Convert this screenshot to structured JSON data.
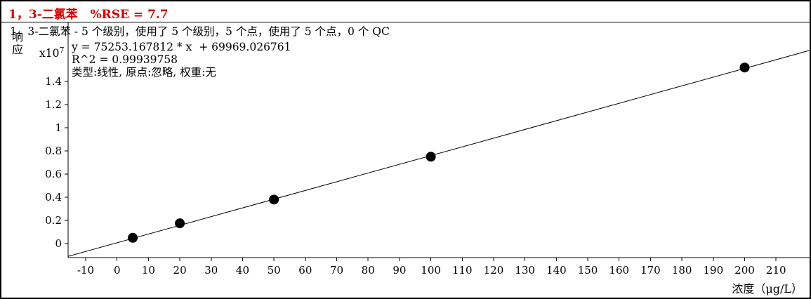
{
  "header": {
    "title": "1，3-二氯苯   %RSE = 7.7"
  },
  "chart_data": {
    "type": "scatter",
    "title": "1，3-二氯苯   %RSE = 7.7",
    "info_line": "1，3-二氯苯 - 5 个级别，使用了 5 个级别，5 个点，使用了 5 个点，0 个 QC",
    "equation": "y = 75253.167812 * x  + 69969.026761",
    "r_squared_label": "R^2 = 0.99939758",
    "fit_description": "类型:线性, 原点:忽略, 权重:无",
    "xlabel": "浓度（μg/L）",
    "ylabel": "响应",
    "y_unit_multiplier": "x10",
    "y_unit_exponent": "7",
    "x_ticks": [
      -10,
      0,
      10,
      20,
      30,
      40,
      50,
      60,
      70,
      80,
      90,
      100,
      110,
      120,
      130,
      140,
      150,
      160,
      170,
      180,
      190,
      200,
      210
    ],
    "y_ticks": [
      0,
      0.2,
      0.4,
      0.6,
      0.8,
      1,
      1.2,
      1.4
    ],
    "xlim": [
      -15.6,
      220.7
    ],
    "ylim": [
      -0.121,
      1.909
    ],
    "grid": false,
    "points": {
      "x": [
        5,
        20,
        50,
        100,
        200
      ],
      "y_x10e7": [
        0.05,
        0.175,
        0.38,
        0.75,
        1.52
      ]
    },
    "fit": {
      "kind": "linear",
      "slope": 75253.167812,
      "intercept": 69969.026761,
      "r2": 0.99939758,
      "scale": 10000000,
      "origin": "忽略",
      "weight": "无"
    },
    "colors": {
      "title": "#d40000",
      "line": "#000000",
      "point": "#000000"
    }
  }
}
